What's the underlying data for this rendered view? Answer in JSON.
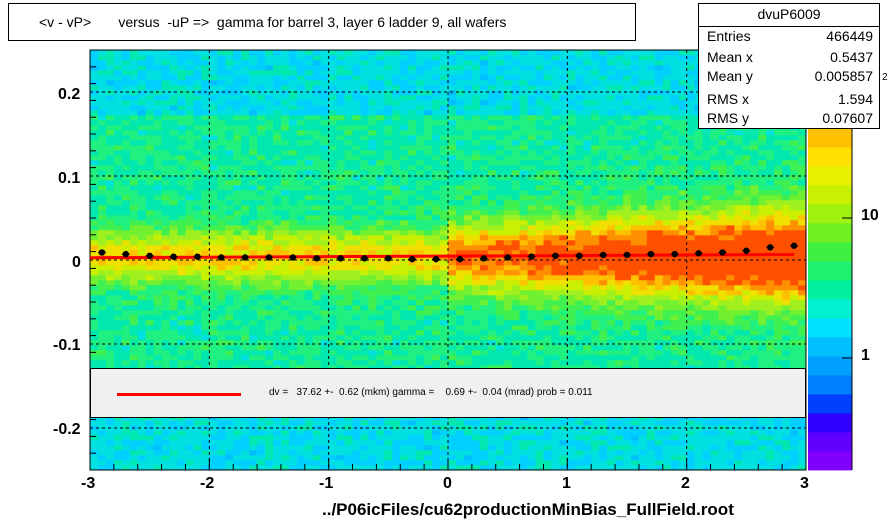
{
  "title": "<v - vP>       versus  -uP =>  gamma for barrel 3, layer 6 ladder 9, all wafers",
  "stats": {
    "name": "dvuP6009",
    "rows": [
      {
        "label": "Entries",
        "value": "466449"
      },
      {
        "label": "Mean x",
        "value": "0.5437"
      },
      {
        "label": "Mean y",
        "value": "0.005857"
      },
      {
        "label": "RMS x",
        "value": "1.594"
      },
      {
        "label": "RMS y",
        "value": "0.07607"
      }
    ]
  },
  "legend": {
    "text": "dv =   37.62 +-  0.62 (mkm) gamma =    0.69 +-  0.04 (mrad) prob = 0.011",
    "line_color": "#ff0000"
  },
  "footer": "../P06icFiles/cu62productionMinBias_FullField.root",
  "chart_data": {
    "type": "heatmap",
    "title": "<v - vP>       versus  -uP =>  gamma for barrel 3, layer 6 ladder 9, all wafers",
    "xlabel": "",
    "ylabel": "",
    "xlim": [
      -3,
      3
    ],
    "ylim": [
      -0.25,
      0.25
    ],
    "x_ticks": [
      "-3",
      "-2",
      "-1",
      "0",
      "1",
      "2",
      "3"
    ],
    "y_ticks": [
      "-0.2",
      "-0.1",
      "0",
      "0.1",
      "0.2"
    ],
    "z_scale": "log",
    "z_ticks": [
      "1",
      "10"
    ],
    "z_top_tick_sup": "2",
    "grid": true,
    "profile_points": {
      "x": [
        -2.9,
        -2.7,
        -2.5,
        -2.3,
        -2.1,
        -1.9,
        -1.7,
        -1.5,
        -1.3,
        -1.1,
        -0.9,
        -0.7,
        -0.5,
        -0.3,
        -0.1,
        0.1,
        0.3,
        0.5,
        0.7,
        0.9,
        1.1,
        1.3,
        1.5,
        1.7,
        1.9,
        2.1,
        2.3,
        2.5,
        2.7,
        2.9
      ],
      "y": [
        0.009,
        0.007,
        0.005,
        0.004,
        0.004,
        0.003,
        0.003,
        0.003,
        0.003,
        0.002,
        0.002,
        0.002,
        0.002,
        0.001,
        0.001,
        0.001,
        0.002,
        0.003,
        0.004,
        0.005,
        0.005,
        0.006,
        0.006,
        0.007,
        0.007,
        0.008,
        0.009,
        0.011,
        0.015,
        0.017
      ]
    },
    "fit_line": {
      "x": [
        -3,
        2.9
      ],
      "y": [
        0.0027,
        0.0065
      ],
      "color": "#ff0000"
    }
  }
}
